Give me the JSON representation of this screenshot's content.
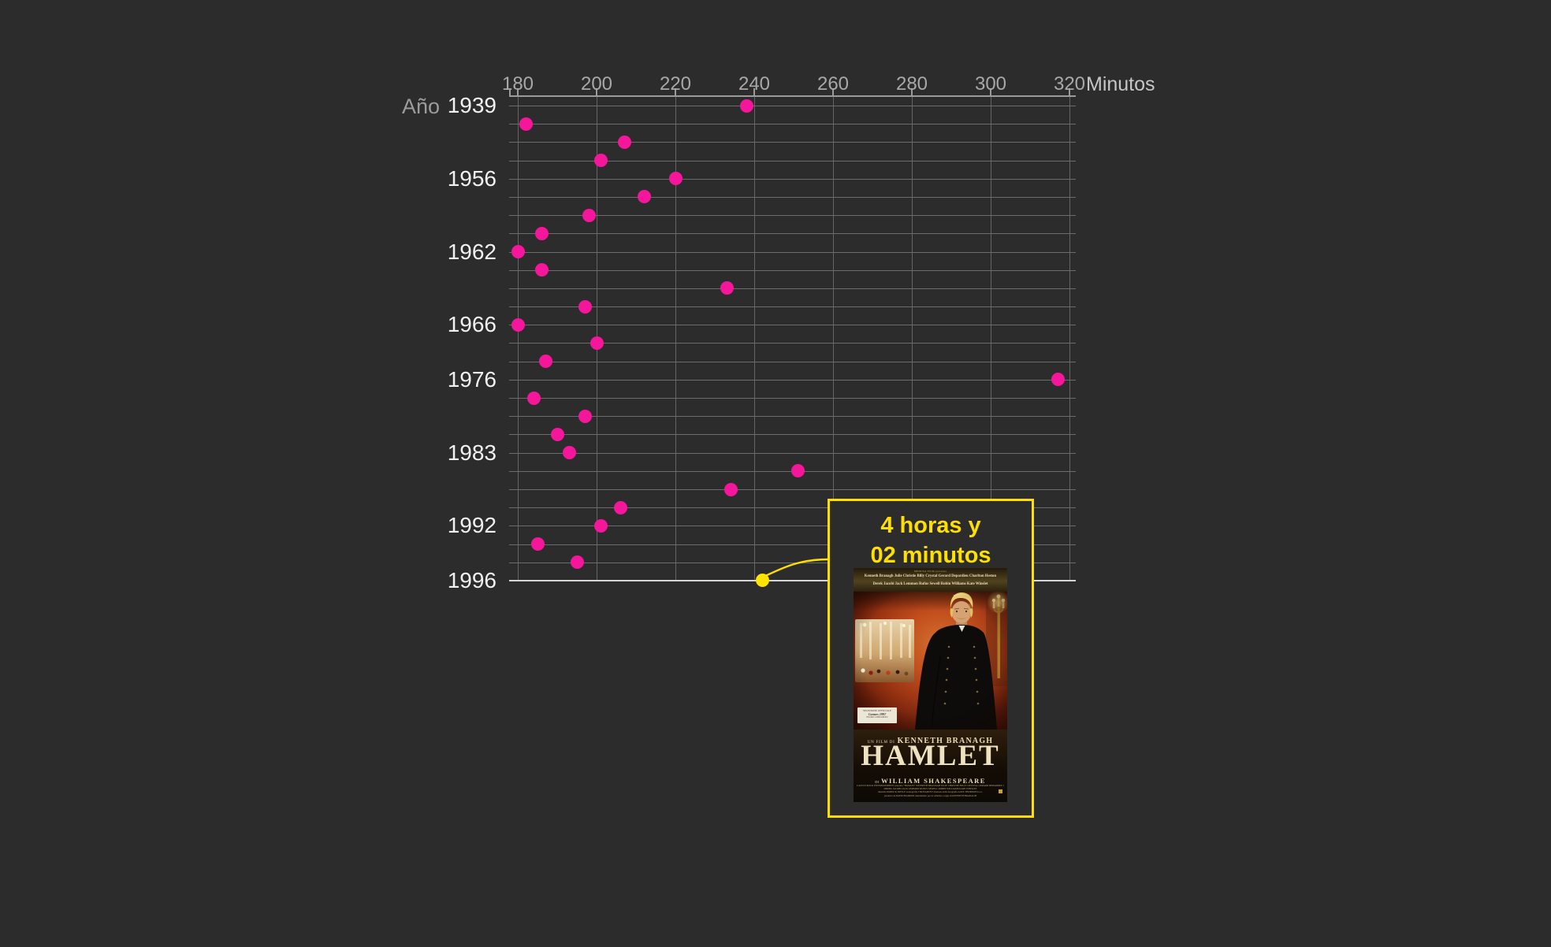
{
  "page": {
    "background_color": "#2d2c2c"
  },
  "chart_data": {
    "type": "scatter",
    "title": "",
    "xlabel": "Minutos",
    "ylabel": "Año",
    "x_axis": {
      "label": "Minutos",
      "ticks": [
        180,
        200,
        220,
        240,
        260,
        280,
        300,
        320
      ],
      "min": 180,
      "max": 320,
      "grid": true
    },
    "y_axis": {
      "header": "Año",
      "labeled_years": [
        "1939",
        "1956",
        "1962",
        "1966",
        "1976",
        "1983",
        "1992",
        "1996"
      ],
      "grid": true
    },
    "legend": "none",
    "points": [
      {
        "row": 1,
        "year_label": "1939",
        "minutes": 238,
        "highlight": false
      },
      {
        "row": 2,
        "year_label": "",
        "minutes": 182,
        "highlight": false
      },
      {
        "row": 3,
        "year_label": "",
        "minutes": 207,
        "highlight": false
      },
      {
        "row": 4,
        "year_label": "",
        "minutes": 201,
        "highlight": false
      },
      {
        "row": 5,
        "year_label": "1956",
        "minutes": 220,
        "highlight": false
      },
      {
        "row": 6,
        "year_label": "",
        "minutes": 212,
        "highlight": false
      },
      {
        "row": 7,
        "year_label": "",
        "minutes": 198,
        "highlight": false
      },
      {
        "row": 8,
        "year_label": "",
        "minutes": 186,
        "highlight": false
      },
      {
        "row": 9,
        "year_label": "1962",
        "minutes": 180,
        "highlight": false
      },
      {
        "row": 10,
        "year_label": "",
        "minutes": 186,
        "highlight": false
      },
      {
        "row": 11,
        "year_label": "",
        "minutes": 233,
        "highlight": false
      },
      {
        "row": 12,
        "year_label": "",
        "minutes": 197,
        "highlight": false
      },
      {
        "row": 13,
        "year_label": "1966",
        "minutes": 180,
        "highlight": false
      },
      {
        "row": 14,
        "year_label": "",
        "minutes": 200,
        "highlight": false
      },
      {
        "row": 15,
        "year_label": "",
        "minutes": 187,
        "highlight": false
      },
      {
        "row": 16,
        "year_label": "1976",
        "minutes": 317,
        "highlight": false
      },
      {
        "row": 17,
        "year_label": "",
        "minutes": 184,
        "highlight": false
      },
      {
        "row": 18,
        "year_label": "",
        "minutes": 197,
        "highlight": false
      },
      {
        "row": 19,
        "year_label": "",
        "minutes": 190,
        "highlight": false
      },
      {
        "row": 20,
        "year_label": "1983",
        "minutes": 193,
        "highlight": false
      },
      {
        "row": 21,
        "year_label": "",
        "minutes": 251,
        "highlight": false
      },
      {
        "row": 22,
        "year_label": "",
        "minutes": 234,
        "highlight": false
      },
      {
        "row": 23,
        "year_label": "",
        "minutes": 206,
        "highlight": false
      },
      {
        "row": 24,
        "year_label": "1992",
        "minutes": 201,
        "highlight": false
      },
      {
        "row": 25,
        "year_label": "",
        "minutes": 185,
        "highlight": false
      },
      {
        "row": 26,
        "year_label": "",
        "minutes": 195,
        "highlight": false
      },
      {
        "row": 27,
        "year_label": "1996",
        "minutes": 242,
        "highlight": true
      }
    ],
    "colors": {
      "dot": "#f5169b",
      "highlight_dot": "#ffe400",
      "gridline": "#6c6c6c",
      "highlight_row_line": "#d6d6d6",
      "axis_line": "#9b9b9b",
      "tick_label": "#a8a8a8",
      "axis_title": "#c6c6c6",
      "year_label": "#f1f1f1",
      "year_header": "#9c9c9c"
    }
  },
  "annotation": {
    "duration_line1": "4 horas y",
    "duration_line2": "02 minutos",
    "accent_color": "#ffdf00",
    "points_to": {
      "year": "1996",
      "minutes": 242
    },
    "poster": {
      "studio_line": "MEDUSA FILM presenta",
      "cast_line1": "Kenneth Branagh   Julie Christie   Billy Crystal   Gerard Depardieu   Charlton Heston",
      "cast_line2": "Derek Jacobi   Jack Lemmon   Rufus Sewell   Robin Williams   Kate Winslet",
      "film_by_prefix": "UN FILM DI",
      "director": "KENNETH BRANAGH",
      "title": "HAMLET",
      "author_prefix": "DI",
      "author": "WILLIAM SHAKESPEARE",
      "stamp": [
        "SELEZIONE UFFICIALE",
        "Cannes 1997",
        "FUORI CONCORSO"
      ],
      "credits": [
        "CASTLE ROCK ENTERTAINMENT presenta \"HAMLET\" KENNETH BRANAGH JULIE CHRISTIE BILLY CRYSTAL GERARD DEPARDIEU CHARLTON HESTON",
        "DEREK JACOBI JACK LEMMON RUFUS SEWELL ROBIN WILLIAMS KATE WINSLET",
        "musiche PATRICK DOYLE scenografie TIM HARVEY direttore della fotografia ALEX THOMSON b.s.c.",
        "prodotto da DAVID BARRON adattamento per lo schermo e regia di KENNETH BRANAGH"
      ]
    }
  }
}
